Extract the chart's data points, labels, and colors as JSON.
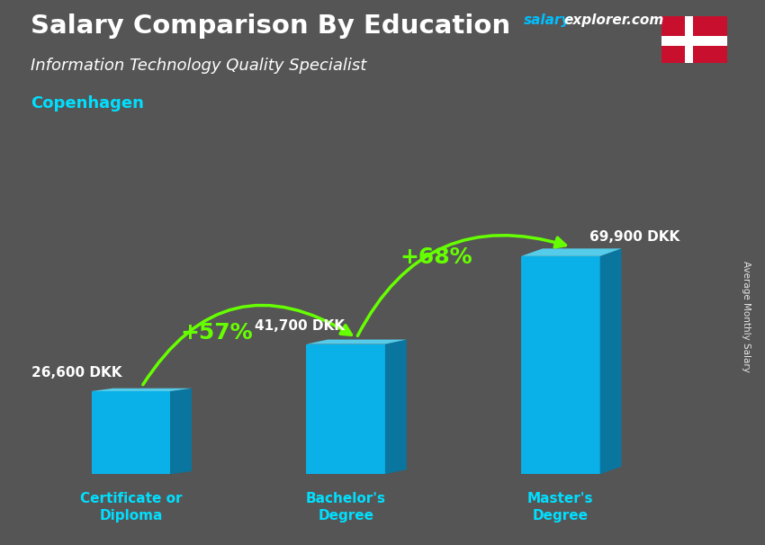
{
  "title": "Salary Comparison By Education",
  "subtitle": "Information Technology Quality Specialist",
  "city": "Copenhagen",
  "ylabel": "Average Monthly Salary",
  "categories": [
    "Certificate or\nDiploma",
    "Bachelor's\nDegree",
    "Master's\nDegree"
  ],
  "values": [
    26600,
    41700,
    69900
  ],
  "value_labels": [
    "26,600 DKK",
    "41,700 DKK",
    "69,900 DKK"
  ],
  "pct_labels": [
    "+57%",
    "+68%"
  ],
  "bar_color_face": "#00BFFF",
  "bar_color_top": "#55DDFF",
  "bar_color_side": "#007AAA",
  "background_color": "#555555",
  "title_color": "#ffffff",
  "subtitle_color": "#ffffff",
  "city_color": "#00DFFF",
  "value_color": "#ffffff",
  "pct_color": "#66FF00",
  "tick_color": "#00DFFF",
  "ylabel_color": "#ffffff",
  "brand_salary": "salary",
  "brand_explorer": "explorer",
  "brand_com": ".com",
  "brand_color_salary": "#00BFFF",
  "brand_color_explorer": "#ffffff",
  "brand_color_com": "#ffffff",
  "flag_red": "#C8102E",
  "flag_white": "#ffffff"
}
